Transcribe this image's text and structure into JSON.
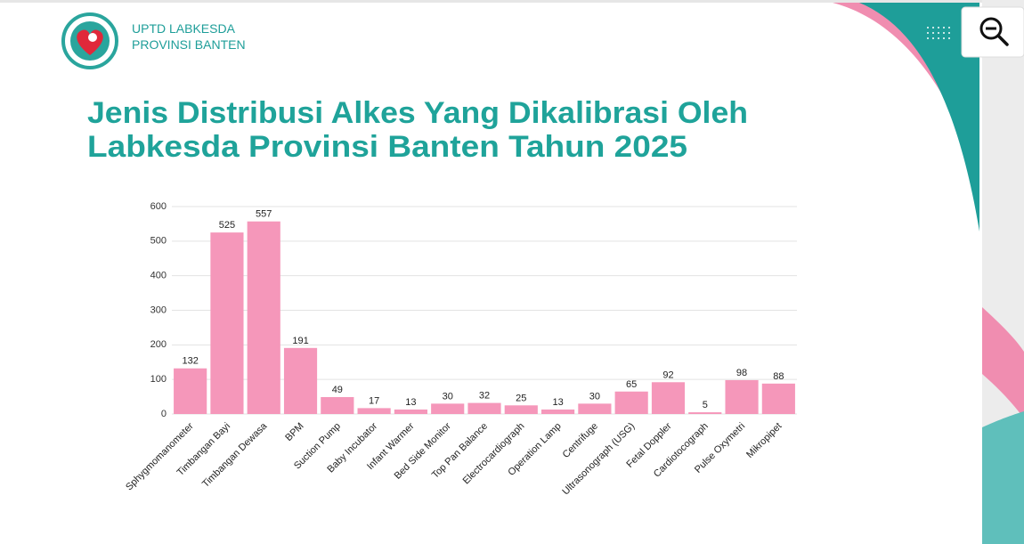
{
  "header": {
    "org_lines": [
      "UPTD LABKESDA",
      "PROVINSI BANTEN"
    ]
  },
  "chart_data": {
    "type": "bar",
    "title": [
      "Jenis Distribusi Alkes Yang Dikalibrasi Oleh",
      "Labkesda Provinsi Banten Tahun  2025"
    ],
    "categories": [
      "Sphygmomanometer",
      "Timbangan Bayi",
      "Timbangan Dewasa",
      "BPM",
      "Suction Pump",
      "Baby Incubator",
      "Infant Warmer",
      "Bed Side Monitor",
      "Top Pan Balance",
      "Electrocardiograph",
      "Operation Lamp",
      "Centrifuge",
      "Ultrasonograph (USG)",
      "Fetal Doppler",
      "Cardiotocograph",
      "Pulse Oxymetri",
      "Mikropipet"
    ],
    "values": [
      132,
      525,
      557,
      191,
      49,
      17,
      13,
      30,
      32,
      25,
      13,
      30,
      65,
      92,
      5,
      98,
      88
    ],
    "color": "#f597ba",
    "ylim": [
      0,
      600
    ],
    "yticks": [
      0,
      100,
      200,
      300,
      400,
      500,
      600
    ],
    "grid": true
  }
}
